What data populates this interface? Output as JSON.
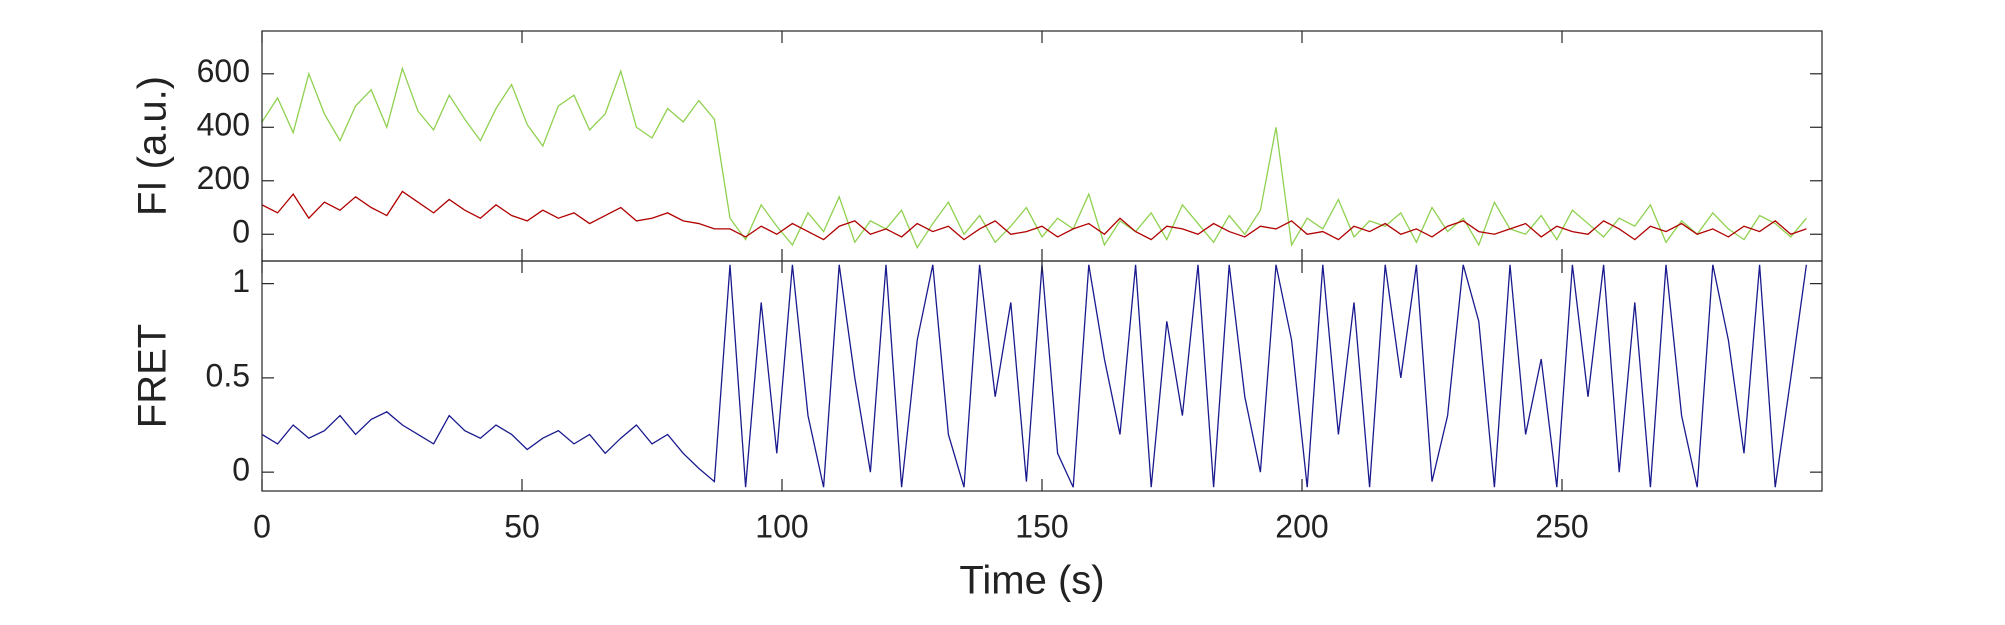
{
  "chart_data": [
    {
      "type": "line",
      "ylabel": "FI (a.u.)",
      "xlim": [
        0,
        300
      ],
      "ylim": [
        -100,
        760
      ],
      "yticks": [
        0,
        200,
        400,
        600
      ],
      "x": [
        0,
        3,
        6,
        9,
        12,
        15,
        18,
        21,
        24,
        27,
        30,
        33,
        36,
        39,
        42,
        45,
        48,
        51,
        54,
        57,
        60,
        63,
        66,
        69,
        72,
        75,
        78,
        81,
        84,
        87,
        90,
        93,
        96,
        99,
        102,
        105,
        108,
        111,
        114,
        117,
        120,
        123,
        126,
        129,
        132,
        135,
        138,
        141,
        144,
        147,
        150,
        153,
        156,
        159,
        162,
        165,
        168,
        171,
        174,
        177,
        180,
        183,
        186,
        189,
        192,
        195,
        198,
        201,
        204,
        207,
        210,
        213,
        216,
        219,
        222,
        225,
        228,
        231,
        234,
        237,
        240,
        243,
        246,
        249,
        252,
        255,
        258,
        261,
        264,
        267,
        270,
        273,
        276,
        279,
        282,
        285,
        288,
        291,
        294,
        297
      ],
      "series": [
        {
          "color": "#8fd14f",
          "values": [
            420,
            510,
            380,
            600,
            450,
            350,
            480,
            540,
            400,
            620,
            460,
            390,
            520,
            430,
            350,
            470,
            560,
            410,
            330,
            480,
            520,
            390,
            450,
            610,
            400,
            360,
            470,
            420,
            500,
            430,
            60,
            -20,
            110,
            30,
            -40,
            80,
            10,
            140,
            -30,
            50,
            20,
            90,
            -50,
            40,
            120,
            0,
            70,
            -30,
            30,
            100,
            -10,
            60,
            20,
            150,
            -40,
            50,
            10,
            80,
            -20,
            110,
            40,
            -30,
            70,
            0,
            90,
            400,
            -40,
            60,
            20,
            130,
            -10,
            50,
            30,
            80,
            -30,
            100,
            10,
            60,
            -40,
            120,
            20,
            0,
            70,
            -20,
            90,
            40,
            -10,
            60,
            30,
            110,
            -30,
            50,
            0,
            80,
            20,
            -20,
            70,
            40,
            -10,
            60
          ]
        },
        {
          "color": "#b00000",
          "values": [
            110,
            80,
            150,
            60,
            120,
            90,
            140,
            100,
            70,
            160,
            120,
            80,
            130,
            90,
            60,
            110,
            70,
            50,
            90,
            60,
            80,
            40,
            70,
            100,
            50,
            60,
            80,
            50,
            40,
            20,
            20,
            -10,
            30,
            0,
            40,
            10,
            -20,
            30,
            50,
            0,
            20,
            -10,
            40,
            10,
            30,
            -20,
            20,
            50,
            0,
            10,
            30,
            -10,
            20,
            40,
            0,
            60,
            10,
            -20,
            30,
            20,
            0,
            40,
            10,
            -10,
            30,
            20,
            50,
            0,
            10,
            -20,
            30,
            10,
            40,
            0,
            20,
            -10,
            30,
            50,
            10,
            0,
            20,
            40,
            -10,
            30,
            10,
            0,
            50,
            20,
            -20,
            30,
            10,
            40,
            0,
            20,
            -10,
            30,
            10,
            50,
            0,
            20
          ]
        }
      ]
    },
    {
      "type": "line",
      "ylabel": "FRET",
      "xlabel": "Time (s)",
      "xlim": [
        0,
        300
      ],
      "ylim": [
        -0.1,
        1.12
      ],
      "yticks": [
        0,
        0.5,
        1
      ],
      "xticks": [
        0,
        50,
        100,
        150,
        200,
        250
      ],
      "x": [
        0,
        3,
        6,
        9,
        12,
        15,
        18,
        21,
        24,
        27,
        30,
        33,
        36,
        39,
        42,
        45,
        48,
        51,
        54,
        57,
        60,
        63,
        66,
        69,
        72,
        75,
        78,
        81,
        84,
        87,
        90,
        93,
        96,
        99,
        102,
        105,
        108,
        111,
        114,
        117,
        120,
        123,
        126,
        129,
        132,
        135,
        138,
        141,
        144,
        147,
        150,
        153,
        156,
        159,
        162,
        165,
        168,
        171,
        174,
        177,
        180,
        183,
        186,
        189,
        192,
        195,
        198,
        201,
        204,
        207,
        210,
        213,
        216,
        219,
        222,
        225,
        228,
        231,
        234,
        237,
        240,
        243,
        246,
        249,
        252,
        255,
        258,
        261,
        264,
        267,
        270,
        273,
        276,
        279,
        282,
        285,
        288,
        291,
        294,
        297
      ],
      "series": [
        {
          "color": "#1a1a8f",
          "values": [
            0.2,
            0.15,
            0.25,
            0.18,
            0.22,
            0.3,
            0.2,
            0.28,
            0.32,
            0.25,
            0.2,
            0.15,
            0.3,
            0.22,
            0.18,
            0.25,
            0.2,
            0.12,
            0.18,
            0.22,
            0.15,
            0.2,
            0.1,
            0.18,
            0.25,
            0.15,
            0.2,
            0.1,
            0.02,
            -0.05,
            1.1,
            -0.08,
            0.9,
            0.1,
            1.1,
            0.3,
            -0.08,
            1.1,
            0.5,
            0.0,
            1.1,
            -0.08,
            0.7,
            1.1,
            0.2,
            -0.08,
            1.1,
            0.4,
            0.9,
            -0.05,
            1.1,
            0.1,
            -0.08,
            1.1,
            0.6,
            0.2,
            1.1,
            -0.08,
            0.8,
            0.3,
            1.1,
            -0.08,
            1.1,
            0.4,
            0.0,
            1.1,
            0.7,
            -0.08,
            1.1,
            0.2,
            0.9,
            -0.08,
            1.1,
            0.5,
            1.1,
            -0.05,
            0.3,
            1.1,
            0.8,
            -0.08,
            1.1,
            0.2,
            0.6,
            -0.08,
            1.1,
            0.4,
            1.1,
            0.0,
            0.9,
            -0.08,
            1.1,
            0.3,
            -0.08,
            1.1,
            0.7,
            0.1,
            1.1,
            -0.08,
            0.5,
            1.1
          ]
        }
      ]
    }
  ]
}
